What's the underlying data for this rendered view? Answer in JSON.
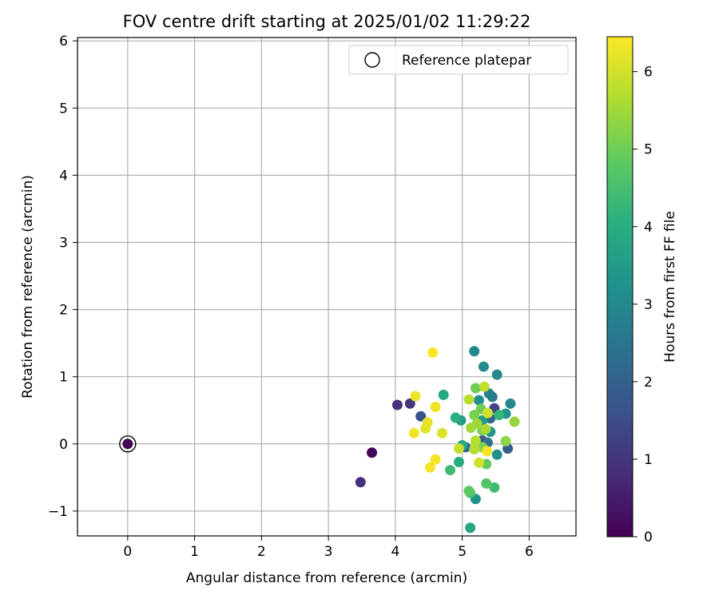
{
  "chart_data": {
    "type": "scatter",
    "title": "FOV centre drift starting at 2025/01/02 11:29:22",
    "xlabel": "Angular distance from reference (arcmin)",
    "ylabel": "Rotation from reference (arcmin)",
    "xlim": [
      -0.75,
      6.7
    ],
    "ylim": [
      -1.37,
      6.05
    ],
    "xticks": [
      0,
      1,
      2,
      3,
      4,
      5,
      6
    ],
    "yticks": [
      -1,
      0,
      1,
      2,
      3,
      4,
      5,
      6
    ],
    "grid": true,
    "legend": {
      "position": "top-right",
      "entries": [
        "Reference platepar"
      ]
    },
    "reference_point": {
      "x": 0,
      "y": 0,
      "c": 0
    },
    "colorbar": {
      "label": "Hours from first FF file",
      "colormap": "viridis",
      "range": [
        0,
        6.45
      ],
      "ticks": [
        0,
        1,
        2,
        3,
        4,
        5,
        6
      ]
    },
    "points": [
      {
        "x": 0.0,
        "y": 0.0,
        "c": 0.05
      },
      {
        "x": 3.65,
        "y": -0.13,
        "c": 0.1
      },
      {
        "x": 3.48,
        "y": -0.57,
        "c": 0.85
      },
      {
        "x": 4.03,
        "y": 0.58,
        "c": 0.9
      },
      {
        "x": 4.22,
        "y": 0.6,
        "c": 1.0
      },
      {
        "x": 4.38,
        "y": 0.41,
        "c": 1.6
      },
      {
        "x": 5.48,
        "y": 0.53,
        "c": 1.3
      },
      {
        "x": 5.68,
        "y": -0.07,
        "c": 1.9
      },
      {
        "x": 5.3,
        "y": 0.05,
        "c": 1.7
      },
      {
        "x": 5.42,
        "y": 0.38,
        "c": 2.2
      },
      {
        "x": 5.45,
        "y": 0.7,
        "c": 2.6
      },
      {
        "x": 5.38,
        "y": 0.02,
        "c": 2.4
      },
      {
        "x": 5.05,
        "y": -0.05,
        "c": 2.1
      },
      {
        "x": 5.18,
        "y": 1.38,
        "c": 3.0
      },
      {
        "x": 5.32,
        "y": 1.15,
        "c": 3.1
      },
      {
        "x": 5.52,
        "y": 1.03,
        "c": 3.0
      },
      {
        "x": 5.25,
        "y": 0.65,
        "c": 3.2
      },
      {
        "x": 5.4,
        "y": 0.75,
        "c": 2.8
      },
      {
        "x": 5.72,
        "y": 0.6,
        "c": 3.0
      },
      {
        "x": 5.65,
        "y": 0.45,
        "c": 3.3
      },
      {
        "x": 5.42,
        "y": 0.18,
        "c": 3.3
      },
      {
        "x": 5.52,
        "y": -0.16,
        "c": 3.2
      },
      {
        "x": 5.2,
        "y": -0.82,
        "c": 3.2
      },
      {
        "x": 5.12,
        "y": -1.25,
        "c": 3.8
      },
      {
        "x": 5.3,
        "y": 0.35,
        "c": 3.5
      },
      {
        "x": 4.98,
        "y": 0.35,
        "c": 3.6
      },
      {
        "x": 4.72,
        "y": 0.73,
        "c": 3.9
      },
      {
        "x": 4.9,
        "y": 0.39,
        "c": 4.1
      },
      {
        "x": 5.0,
        "y": -0.02,
        "c": 4.0
      },
      {
        "x": 5.55,
        "y": 0.43,
        "c": 4.2
      },
      {
        "x": 4.82,
        "y": -0.39,
        "c": 4.4
      },
      {
        "x": 4.95,
        "y": -0.27,
        "c": 4.0
      },
      {
        "x": 5.48,
        "y": -0.65,
        "c": 4.4
      },
      {
        "x": 5.12,
        "y": -0.73,
        "c": 4.6
      },
      {
        "x": 5.1,
        "y": -0.7,
        "c": 4.8
      },
      {
        "x": 5.36,
        "y": -0.59,
        "c": 4.7
      },
      {
        "x": 5.36,
        "y": -0.3,
        "c": 4.9
      },
      {
        "x": 5.2,
        "y": 0.83,
        "c": 5.0
      },
      {
        "x": 5.28,
        "y": 0.52,
        "c": 5.0
      },
      {
        "x": 5.18,
        "y": 0.43,
        "c": 5.1
      },
      {
        "x": 5.3,
        "y": 0.2,
        "c": 5.1
      },
      {
        "x": 5.3,
        "y": -0.05,
        "c": 5.2
      },
      {
        "x": 5.65,
        "y": 0.04,
        "c": 5.3
      },
      {
        "x": 5.78,
        "y": 0.33,
        "c": 5.4
      },
      {
        "x": 5.13,
        "y": 0.24,
        "c": 5.5
      },
      {
        "x": 5.22,
        "y": 0.3,
        "c": 5.5
      },
      {
        "x": 5.35,
        "y": 0.22,
        "c": 5.6
      },
      {
        "x": 5.2,
        "y": 0.05,
        "c": 5.7
      },
      {
        "x": 5.33,
        "y": 0.85,
        "c": 5.8
      },
      {
        "x": 5.1,
        "y": 0.66,
        "c": 5.8
      },
      {
        "x": 5.18,
        "y": -0.08,
        "c": 5.7
      },
      {
        "x": 4.95,
        "y": -0.07,
        "c": 5.9
      },
      {
        "x": 5.25,
        "y": -0.28,
        "c": 6.0
      },
      {
        "x": 5.38,
        "y": 0.46,
        "c": 6.0
      },
      {
        "x": 4.7,
        "y": 0.16,
        "c": 6.1
      },
      {
        "x": 4.45,
        "y": 0.23,
        "c": 6.2
      },
      {
        "x": 4.48,
        "y": 0.32,
        "c": 6.2
      },
      {
        "x": 4.6,
        "y": 0.55,
        "c": 6.3
      },
      {
        "x": 4.3,
        "y": 0.71,
        "c": 6.3
      },
      {
        "x": 4.28,
        "y": 0.16,
        "c": 6.3
      },
      {
        "x": 4.6,
        "y": -0.23,
        "c": 6.35
      },
      {
        "x": 4.52,
        "y": -0.35,
        "c": 6.35
      },
      {
        "x": 4.56,
        "y": 1.36,
        "c": 6.4
      },
      {
        "x": 5.37,
        "y": -0.11,
        "c": 6.4
      }
    ]
  }
}
